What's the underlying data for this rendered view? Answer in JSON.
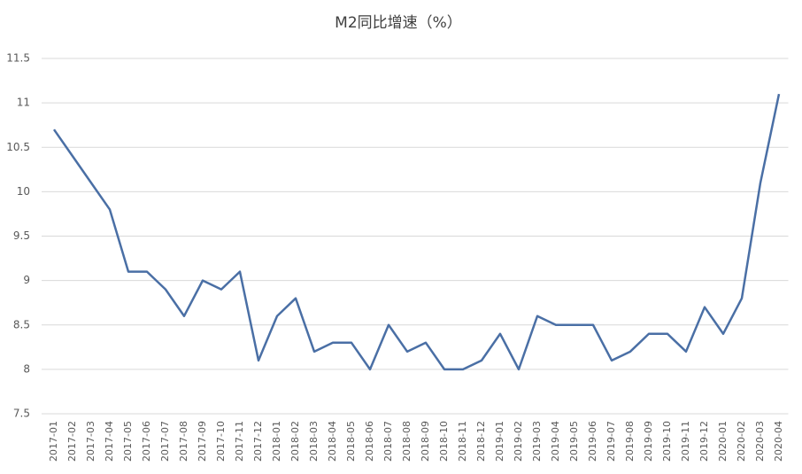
{
  "chart_data": {
    "type": "line",
    "title": "M2同比增速（%）",
    "categories": [
      "2017-01",
      "2017-02",
      "2017-03",
      "2017-04",
      "2017-05",
      "2017-06",
      "2017-07",
      "2017-08",
      "2017-09",
      "2017-10",
      "2017-11",
      "2017-12",
      "2018-01",
      "2018-02",
      "2018-03",
      "2018-04",
      "2018-05",
      "2018-06",
      "2018-07",
      "2018-08",
      "2018-09",
      "2018-10",
      "2018-11",
      "2018-12",
      "2019-01",
      "2019-02",
      "2019-03",
      "2019-04",
      "2019-05",
      "2019-06",
      "2019-07",
      "2019-08",
      "2019-09",
      "2019-10",
      "2019-11",
      "2019-12",
      "2020-01",
      "2020-02",
      "2020-03",
      "2020-04"
    ],
    "values": [
      10.7,
      10.4,
      10.1,
      9.8,
      9.1,
      9.1,
      8.9,
      8.6,
      9.0,
      8.9,
      9.1,
      8.1,
      8.6,
      8.8,
      8.2,
      8.3,
      8.3,
      8.0,
      8.5,
      8.2,
      8.3,
      8.0,
      8.0,
      8.1,
      8.4,
      8.0,
      8.6,
      8.5,
      8.5,
      8.5,
      8.1,
      8.2,
      8.4,
      8.4,
      8.2,
      8.7,
      8.4,
      8.8,
      10.1,
      11.1
    ],
    "color": "#4a6fa5",
    "ylim": [
      7.5,
      11.5
    ],
    "yticks": [
      7.5,
      8,
      8.5,
      9,
      9.5,
      10,
      10.5,
      11,
      11.5
    ],
    "grid": true
  }
}
